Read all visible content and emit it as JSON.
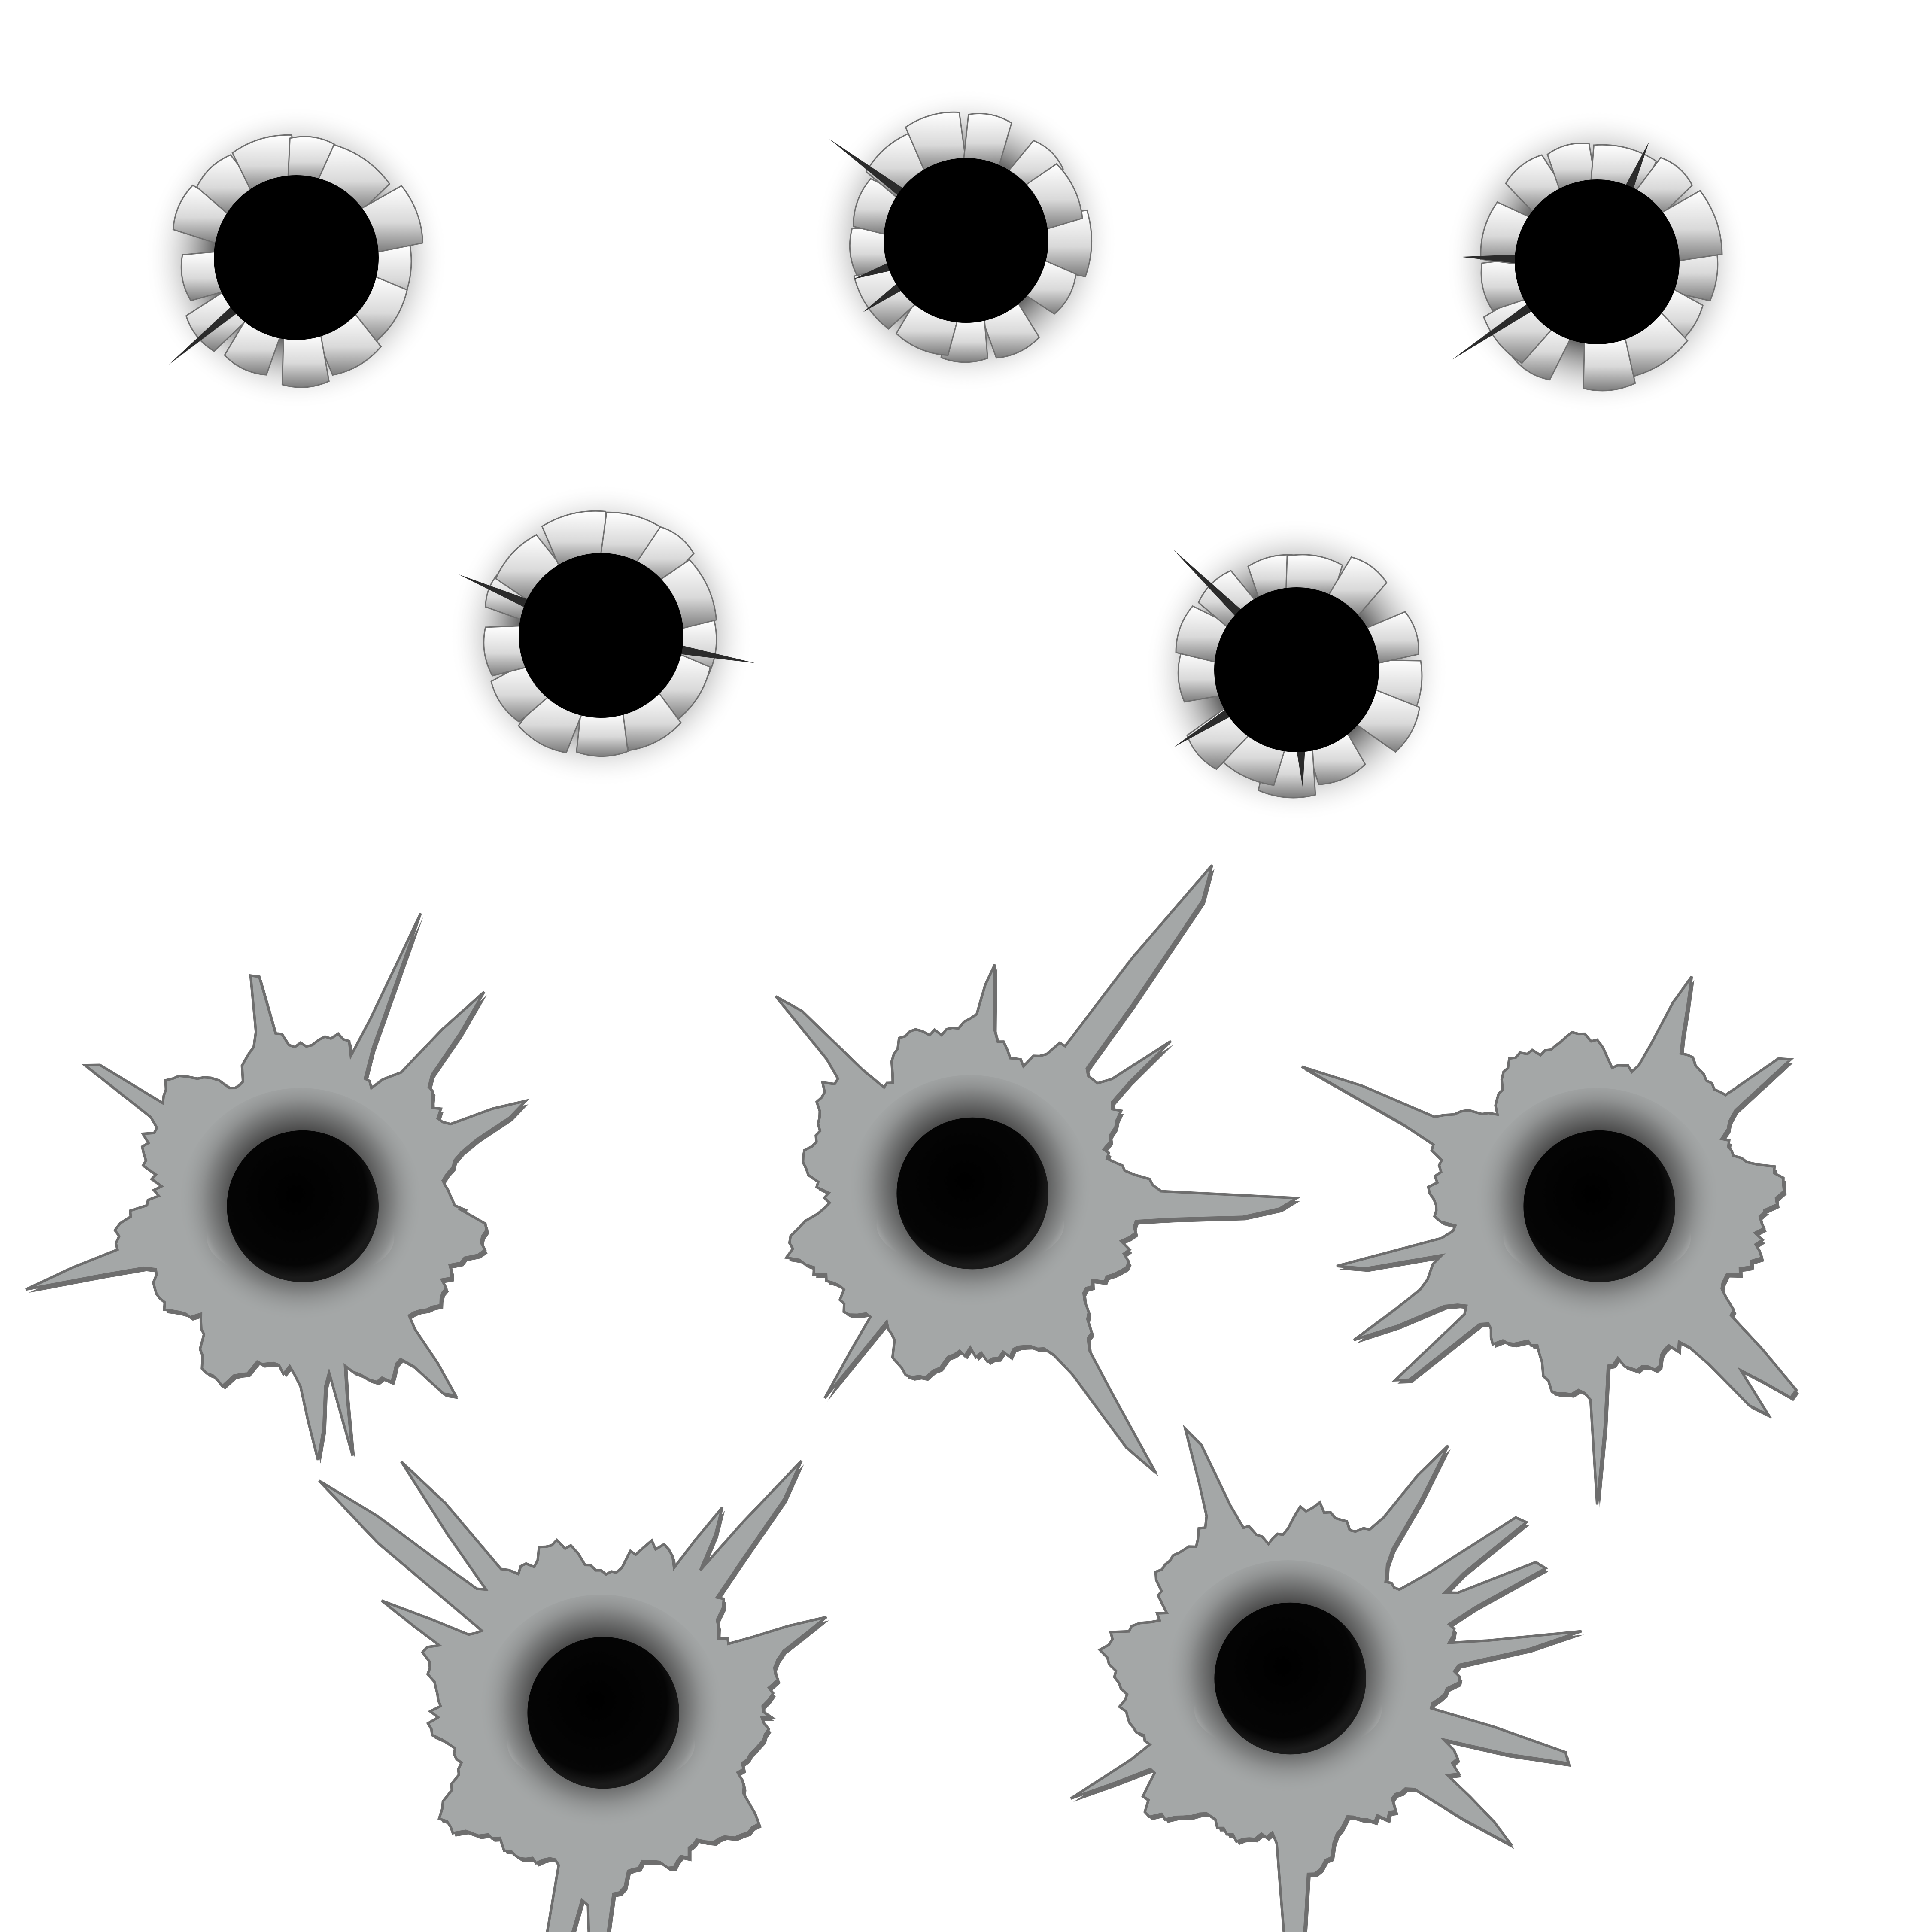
{
  "background_color": "#ffffff",
  "colors": {
    "hole_black": "#000000",
    "paper_light": "#ffffff",
    "paper_shade": "#8c8c8c",
    "shadow_dark": "#2b2b2b",
    "metal_plate": "#a4a7a7",
    "metal_edge": "#6e6e6e",
    "metal_dent": "#3c3c3c",
    "metal_highlight": "#f4f4f4"
  },
  "groups": [
    {
      "name": "torn-paper-bullet-holes",
      "style": "torn-paper",
      "count": 5
    },
    {
      "name": "metal-bullet-holes",
      "style": "metal-splash",
      "count": 5
    }
  ]
}
